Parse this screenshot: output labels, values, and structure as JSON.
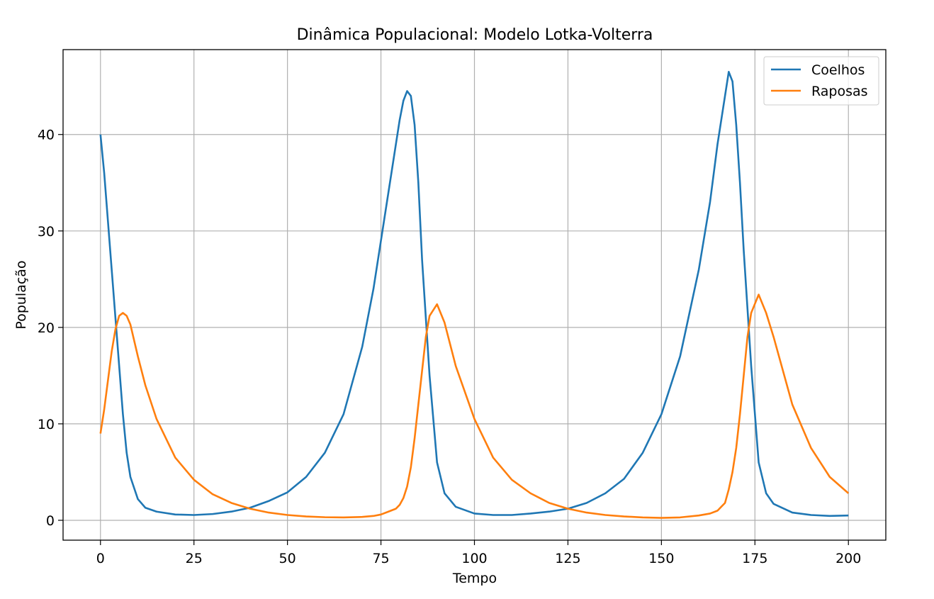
{
  "chart_data": {
    "type": "line",
    "title": "Dinâmica Populacional: Modelo Lotka-Volterra",
    "xlabel": "Tempo",
    "ylabel": "População",
    "x": [
      0,
      1,
      2,
      3,
      4,
      5,
      6,
      7,
      8,
      10,
      12,
      15,
      20,
      25,
      30,
      35,
      40,
      45,
      50,
      55,
      60,
      65,
      70,
      73,
      75,
      77,
      79,
      80,
      81,
      82,
      83,
      84,
      85,
      86,
      87,
      88,
      90,
      92,
      95,
      100,
      105,
      110,
      115,
      120,
      125,
      130,
      135,
      140,
      145,
      150,
      155,
      160,
      163,
      165,
      167,
      168,
      169,
      170,
      171,
      172,
      173,
      174,
      176,
      178,
      180,
      185,
      190,
      195,
      200
    ],
    "series": [
      {
        "name": "Coelhos",
        "color": "#1f77b4",
        "values": [
          40,
          36,
          31,
          26,
          21,
          16,
          11,
          7,
          4.5,
          2.2,
          1.3,
          0.9,
          0.6,
          0.55,
          0.65,
          0.9,
          1.3,
          2.0,
          2.9,
          4.5,
          7,
          11,
          18,
          24,
          29,
          34,
          39,
          41.5,
          43.5,
          44.5,
          44,
          41,
          35,
          27,
          21,
          15,
          6,
          2.8,
          1.4,
          0.7,
          0.55,
          0.55,
          0.7,
          0.9,
          1.2,
          1.8,
          2.8,
          4.3,
          7,
          11,
          17,
          26,
          33,
          39,
          44,
          46.5,
          45.5,
          41,
          35,
          28,
          22,
          16,
          6,
          2.8,
          1.7,
          0.8,
          0.55,
          0.45,
          0.5
        ]
      },
      {
        "name": "Raposas",
        "color": "#ff7f0e",
        "values": [
          9,
          11.5,
          14.5,
          17.5,
          19.8,
          21.2,
          21.5,
          21.2,
          20.3,
          17,
          14,
          10.5,
          6.5,
          4.2,
          2.7,
          1.8,
          1.2,
          0.8,
          0.55,
          0.4,
          0.32,
          0.3,
          0.35,
          0.45,
          0.6,
          0.9,
          1.2,
          1.6,
          2.3,
          3.5,
          5.5,
          8.5,
          12,
          15.5,
          19,
          21.2,
          22.4,
          20.5,
          16,
          10.5,
          6.5,
          4.2,
          2.8,
          1.8,
          1.2,
          0.8,
          0.55,
          0.4,
          0.3,
          0.25,
          0.3,
          0.5,
          0.7,
          1.0,
          1.8,
          3.2,
          5,
          7.5,
          11,
          15,
          19,
          21.5,
          23.4,
          21.5,
          19,
          12,
          7.5,
          4.5,
          2.8
        ]
      }
    ],
    "xlim": [
      -10,
      210
    ],
    "ylim": [
      -2.06,
      48.8
    ],
    "xticks": [
      0,
      25,
      50,
      75,
      100,
      125,
      150,
      175,
      200
    ],
    "yticks": [
      0,
      10,
      20,
      30,
      40
    ],
    "grid": true,
    "legend": "upper right"
  }
}
